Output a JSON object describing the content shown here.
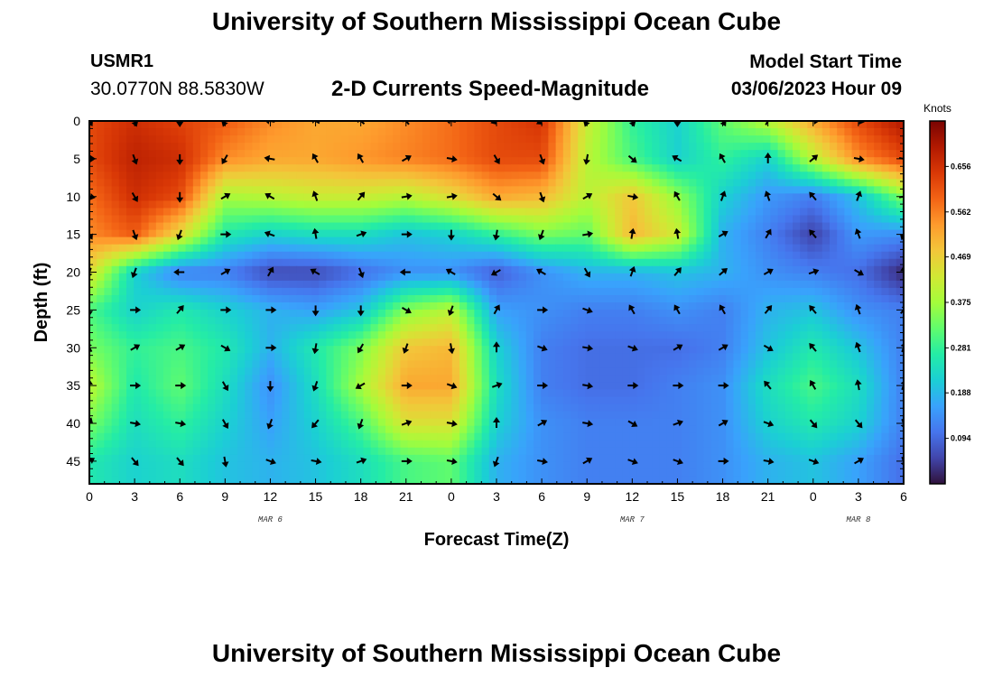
{
  "header": {
    "title": "University of Southern Mississippi Ocean Cube",
    "station_id": "USMR1",
    "station_coords": "30.0770N  88.5830W",
    "product": "2-D Currents Speed-Magnitude",
    "model_start_label": "Model Start Time",
    "model_start_value": "03/06/2023 Hour 09"
  },
  "footer": {
    "title": "University of Southern Mississippi Ocean Cube"
  },
  "chart_data": {
    "type": "heatmap",
    "xlabel": "Forecast Time(Z)",
    "ylabel": "Depth (ft)",
    "x_tick_labels": [
      "0",
      "3",
      "6",
      "9",
      "12",
      "15",
      "18",
      "21",
      "0",
      "3",
      "6",
      "9",
      "12",
      "15",
      "18",
      "21",
      "0",
      "3",
      "6"
    ],
    "date_labels": [
      {
        "text": "MAR 6",
        "at_hour": 12
      },
      {
        "text": "MAR 7",
        "at_hour": 36
      },
      {
        "text": "MAR 8",
        "at_hour": 51
      }
    ],
    "x_hours": [
      0,
      3,
      6,
      9,
      12,
      15,
      18,
      21,
      24,
      27,
      30,
      33,
      36,
      39,
      42,
      45,
      48,
      51,
      54
    ],
    "xlim": [
      0,
      54
    ],
    "depths": [
      0,
      5,
      10,
      15,
      20,
      25,
      30,
      35,
      40,
      45
    ],
    "ylim": [
      48,
      0
    ],
    "y_tick_labels": [
      "0",
      "5",
      "10",
      "15",
      "20",
      "25",
      "30",
      "35",
      "40",
      "45"
    ],
    "colorbar": {
      "title": "Knots",
      "ticks": [
        "0.656",
        "0.562",
        "0.469",
        "0.375",
        "0.281",
        "0.188",
        "0.094"
      ],
      "tick_values": [
        0.656,
        0.562,
        0.469,
        0.375,
        0.281,
        0.188,
        0.094
      ],
      "range": [
        0,
        0.75
      ],
      "colors": [
        "#30123b",
        "#4145ab",
        "#4675ed",
        "#39a2fc",
        "#1bcfd4",
        "#24eca6",
        "#61fc6c",
        "#a4fc3b",
        "#d1e834",
        "#f3c63a",
        "#fe9b2d",
        "#f36315",
        "#d93806",
        "#b11901",
        "#7a0402"
      ]
    },
    "speed_knots": [
      [
        0.62,
        0.66,
        0.63,
        0.6,
        0.55,
        0.52,
        0.52,
        0.55,
        0.58,
        0.62,
        0.65,
        0.42,
        0.28,
        0.22,
        0.32,
        0.4,
        0.52,
        0.62,
        0.7
      ],
      [
        0.62,
        0.68,
        0.66,
        0.55,
        0.52,
        0.52,
        0.54,
        0.56,
        0.58,
        0.62,
        0.62,
        0.4,
        0.3,
        0.22,
        0.28,
        0.22,
        0.4,
        0.55,
        0.62
      ],
      [
        0.58,
        0.66,
        0.62,
        0.38,
        0.4,
        0.42,
        0.42,
        0.4,
        0.45,
        0.52,
        0.5,
        0.4,
        0.48,
        0.36,
        0.22,
        0.15,
        0.12,
        0.2,
        0.35
      ],
      [
        0.55,
        0.6,
        0.45,
        0.26,
        0.22,
        0.24,
        0.24,
        0.2,
        0.22,
        0.28,
        0.34,
        0.32,
        0.5,
        0.42,
        0.18,
        0.12,
        0.05,
        0.15,
        0.14
      ],
      [
        0.45,
        0.22,
        0.12,
        0.12,
        0.06,
        0.06,
        0.1,
        0.14,
        0.14,
        0.08,
        0.14,
        0.18,
        0.18,
        0.2,
        0.18,
        0.14,
        0.12,
        0.1,
        0.02
      ],
      [
        0.3,
        0.22,
        0.26,
        0.22,
        0.18,
        0.16,
        0.2,
        0.35,
        0.4,
        0.16,
        0.14,
        0.12,
        0.12,
        0.14,
        0.12,
        0.18,
        0.2,
        0.14,
        0.12
      ],
      [
        0.34,
        0.28,
        0.3,
        0.26,
        0.18,
        0.26,
        0.34,
        0.48,
        0.5,
        0.22,
        0.12,
        0.1,
        0.1,
        0.1,
        0.12,
        0.2,
        0.26,
        0.2,
        0.12
      ],
      [
        0.4,
        0.26,
        0.32,
        0.24,
        0.14,
        0.24,
        0.38,
        0.52,
        0.52,
        0.24,
        0.12,
        0.1,
        0.1,
        0.12,
        0.14,
        0.24,
        0.3,
        0.24,
        0.12
      ],
      [
        0.34,
        0.24,
        0.28,
        0.22,
        0.16,
        0.22,
        0.3,
        0.44,
        0.44,
        0.22,
        0.14,
        0.12,
        0.12,
        0.12,
        0.14,
        0.22,
        0.26,
        0.22,
        0.12
      ],
      [
        0.26,
        0.22,
        0.24,
        0.2,
        0.18,
        0.2,
        0.24,
        0.3,
        0.32,
        0.18,
        0.14,
        0.12,
        0.12,
        0.12,
        0.14,
        0.18,
        0.2,
        0.16,
        0.1
      ]
    ],
    "direction_deg": [
      [
        150,
        160,
        180,
        200,
        280,
        300,
        310,
        320,
        280,
        250,
        240,
        200,
        160,
        180,
        150,
        30,
        90,
        100,
        100
      ],
      [
        90,
        160,
        180,
        210,
        280,
        330,
        330,
        60,
        100,
        150,
        160,
        190,
        130,
        300,
        330,
        0,
        50,
        100,
        100
      ],
      [
        100,
        150,
        180,
        60,
        300,
        340,
        40,
        80,
        80,
        130,
        160,
        60,
        100,
        330,
        20,
        340,
        320,
        20,
        80
      ],
      [
        150,
        160,
        200,
        90,
        290,
        350,
        70,
        90,
        180,
        190,
        200,
        80,
        10,
        350,
        60,
        30,
        320,
        340,
        200
      ],
      [
        200,
        200,
        270,
        60,
        30,
        300,
        160,
        270,
        300,
        240,
        300,
        150,
        20,
        40,
        50,
        60,
        70,
        120,
        0
      ],
      [
        180,
        90,
        40,
        90,
        90,
        180,
        180,
        120,
        200,
        30,
        90,
        110,
        330,
        330,
        330,
        40,
        320,
        340,
        40
      ],
      [
        330,
        60,
        60,
        120,
        90,
        190,
        210,
        200,
        170,
        0,
        110,
        100,
        110,
        60,
        60,
        120,
        320,
        340,
        20
      ],
      [
        0,
        90,
        90,
        150,
        180,
        200,
        240,
        90,
        110,
        70,
        90,
        100,
        90,
        90,
        90,
        320,
        330,
        350,
        20
      ],
      [
        20,
        100,
        100,
        150,
        200,
        220,
        200,
        70,
        100,
        0,
        60,
        100,
        120,
        70,
        60,
        110,
        140,
        140,
        160
      ],
      [
        60,
        140,
        140,
        170,
        110,
        100,
        70,
        90,
        100,
        200,
        100,
        60,
        110,
        110,
        90,
        100,
        110,
        60,
        160
      ]
    ]
  }
}
